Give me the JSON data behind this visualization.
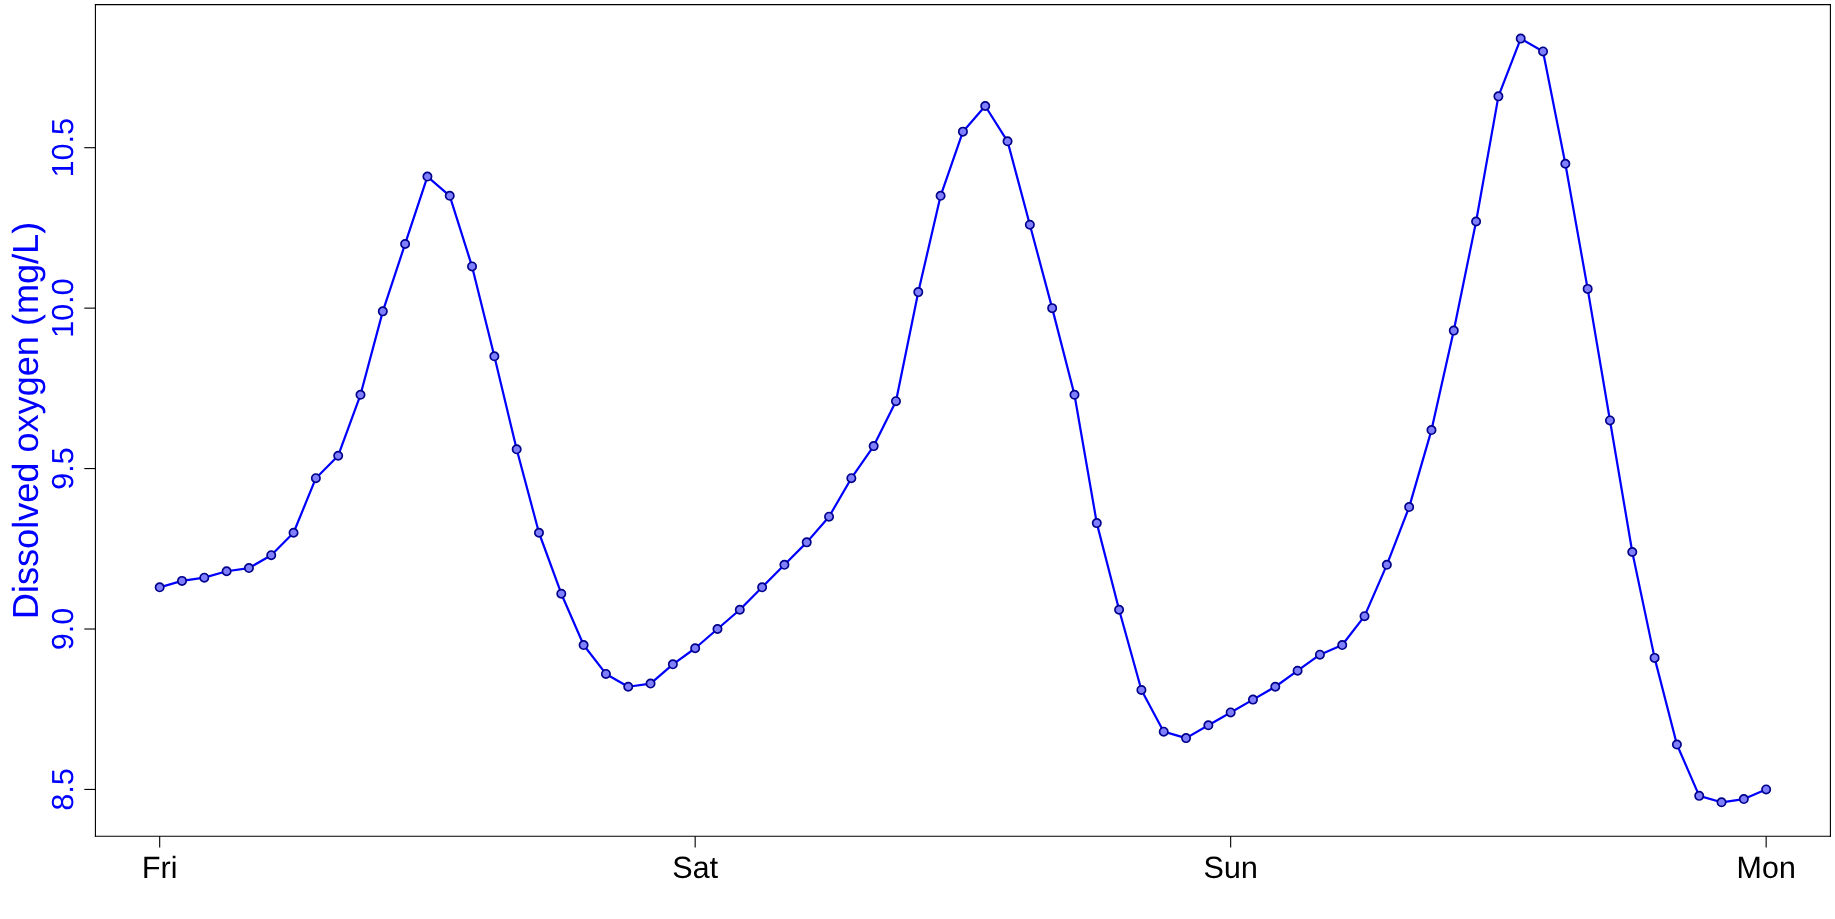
{
  "chart_data": {
    "type": "line",
    "ylabel": "Dissolved oxygen (mg/L)",
    "categories": [
      "Fri",
      null,
      null,
      null,
      null,
      null,
      null,
      null,
      null,
      null,
      null,
      null,
      null,
      null,
      null,
      null,
      null,
      null,
      null,
      null,
      null,
      null,
      null,
      null,
      "Sat",
      null,
      null,
      null,
      null,
      null,
      null,
      null,
      null,
      null,
      null,
      null,
      null,
      null,
      null,
      null,
      null,
      null,
      null,
      null,
      null,
      null,
      null,
      null,
      "Sun",
      null,
      null,
      null,
      null,
      null,
      null,
      null,
      null,
      null,
      null,
      null,
      null,
      null,
      null,
      null,
      null,
      null,
      null,
      null,
      null,
      null,
      null,
      null,
      "Mon"
    ],
    "ylim": [
      8.354,
      10.946
    ],
    "yticks": [
      8.5,
      {
        "value": 9,
        "label": "9.0"
      },
      9.5,
      {
        "value": 10,
        "label": "10.0"
      },
      10.5
    ],
    "marker": "circle",
    "line_style": "solid",
    "series": [
      {
        "color": "#0000ff",
        "values": [
          9.13,
          9.15,
          9.16,
          9.18,
          9.19,
          9.23,
          9.3,
          9.47,
          9.54,
          9.73,
          9.99,
          10.2,
          10.41,
          10.35,
          10.13,
          9.85,
          9.56,
          9.3,
          9.11,
          8.95,
          8.86,
          8.82,
          8.83,
          8.89,
          8.94,
          9.0,
          9.06,
          9.13,
          9.2,
          9.27,
          9.35,
          9.47,
          9.57,
          9.71,
          10.05,
          10.35,
          10.55,
          10.63,
          10.52,
          10.26,
          10.0,
          9.73,
          9.33,
          9.06,
          8.81,
          8.68,
          8.66,
          8.7,
          8.74,
          8.78,
          8.82,
          8.87,
          8.92,
          8.95,
          9.04,
          9.2,
          9.38,
          9.62,
          9.93,
          10.27,
          10.66,
          10.84,
          10.8,
          10.45,
          10.06,
          9.65,
          9.24,
          8.91,
          8.64,
          8.48,
          8.46,
          8.47,
          8.5
        ]
      }
    ]
  }
}
